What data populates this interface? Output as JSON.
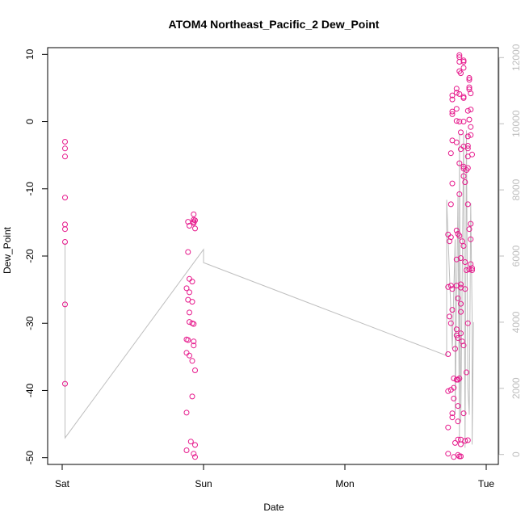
{
  "chart_data": {
    "type": "scatter",
    "title": "ATOM4 Northeast_Pacific_2 Dew_Point",
    "xlabel": "Date",
    "ylabel": "Dew_Point",
    "x_ticks": [
      "Sat",
      "Sun",
      "Mon",
      "Tue"
    ],
    "y_ticks": [
      "-50",
      "-40",
      "-30",
      "-20",
      "-10",
      "0",
      "10"
    ],
    "y_tick_values": [
      -50,
      -40,
      -30,
      -20,
      -10,
      0,
      10
    ],
    "ylim": [
      -51,
      11
    ],
    "y2_ticks": [
      "0",
      "2000",
      "4000",
      "6000",
      "8000",
      "10000",
      "12000"
    ],
    "y2_tick_values": [
      0,
      2000,
      4000,
      6000,
      8000,
      10000,
      12000
    ],
    "y2lim": [
      -300,
      12300
    ],
    "x_range_days": [
      0,
      3.05
    ],
    "colors": {
      "points": "#e6198c",
      "line": "#bebebe",
      "axis": "#000000",
      "right_axis": "#bdbdbd"
    },
    "series": [
      {
        "type": "scatter",
        "axis": "left",
        "points": [
          [
            0.02,
            -3
          ],
          [
            0.02,
            -4
          ],
          [
            0.02,
            -5.2
          ],
          [
            0.02,
            -11.3
          ],
          [
            0.02,
            -15.3
          ],
          [
            0.02,
            -16
          ],
          [
            0.02,
            -17.9
          ],
          [
            0.02,
            -27.2
          ],
          [
            0.02,
            -39
          ],
          [
            0.89,
            -14.9
          ],
          [
            0.9,
            -15.5
          ],
          [
            0.89,
            -19.4
          ],
          [
            0.9,
            -23.4
          ],
          [
            0.88,
            -24.8
          ],
          [
            0.9,
            -25.4
          ],
          [
            0.89,
            -26.5
          ],
          [
            0.9,
            -28.4
          ],
          [
            0.9,
            -29.8
          ],
          [
            0.88,
            -32.4
          ],
          [
            0.89,
            -32.5
          ],
          [
            0.88,
            -34.4
          ],
          [
            0.9,
            -34.8
          ],
          [
            0.88,
            -43.3
          ],
          [
            0.91,
            -47.6
          ],
          [
            0.88,
            -48.9
          ],
          [
            0.93,
            -13.8
          ],
          [
            0.93,
            -14.6
          ],
          [
            0.93,
            -14.9
          ],
          [
            0.93,
            -15.1
          ],
          [
            0.94,
            -14.7
          ],
          [
            0.94,
            -15.9
          ],
          [
            0.92,
            -23.8
          ],
          [
            0.92,
            -26.8
          ],
          [
            0.92,
            -30
          ],
          [
            0.93,
            -30.1
          ],
          [
            0.93,
            -32.7
          ],
          [
            0.93,
            -33.3
          ],
          [
            0.92,
            -35.6
          ],
          [
            0.94,
            -37
          ],
          [
            0.92,
            -40.9
          ],
          [
            0.94,
            -48.1
          ],
          [
            0.93,
            -49.4
          ],
          [
            0.94,
            -49.9
          ],
          [
            2.73,
            -16.8
          ],
          [
            2.74,
            -17.8
          ],
          [
            2.75,
            -17.2
          ],
          [
            2.73,
            -24.6
          ],
          [
            2.75,
            -24.4
          ],
          [
            2.74,
            -29
          ],
          [
            2.75,
            -30
          ],
          [
            2.73,
            -34.6
          ],
          [
            2.75,
            -39.9
          ],
          [
            2.73,
            -40.1
          ],
          [
            2.76,
            -44
          ],
          [
            2.73,
            -45.5
          ],
          [
            2.76,
            -43.4
          ],
          [
            2.73,
            -49.4
          ],
          [
            2.77,
            -49.9
          ],
          [
            2.76,
            3.3
          ],
          [
            2.76,
            3.9
          ],
          [
            2.76,
            1.1
          ],
          [
            2.76,
            1.5
          ],
          [
            2.76,
            -2.8
          ],
          [
            2.75,
            -4.7
          ],
          [
            2.76,
            -9.2
          ],
          [
            2.75,
            -12.3
          ],
          [
            2.76,
            -24.9
          ],
          [
            2.76,
            -28
          ],
          [
            2.77,
            -38.2
          ],
          [
            2.77,
            -39.6
          ],
          [
            2.77,
            -41.2
          ],
          [
            2.78,
            -47.8
          ],
          [
            2.78,
            -33.8
          ],
          [
            2.79,
            4.3
          ],
          [
            2.79,
            4.9
          ],
          [
            2.79,
            1.9
          ],
          [
            2.79,
            0.1
          ],
          [
            2.79,
            -3.1
          ],
          [
            2.79,
            -16.2
          ],
          [
            2.8,
            -16.7
          ],
          [
            2.79,
            -20.5
          ],
          [
            2.79,
            -24.4
          ],
          [
            2.8,
            -26.3
          ],
          [
            2.79,
            -30.9
          ],
          [
            2.79,
            -31.8
          ],
          [
            2.8,
            -32.2
          ],
          [
            2.79,
            -38.4
          ],
          [
            2.8,
            -38.4
          ],
          [
            2.8,
            -42.3
          ],
          [
            2.8,
            -44.6
          ],
          [
            2.8,
            -47.3
          ],
          [
            2.8,
            -49.6
          ],
          [
            2.81,
            -49.8
          ],
          [
            2.81,
            9.9
          ],
          [
            2.81,
            9.6
          ],
          [
            2.81,
            8.9
          ],
          [
            2.81,
            7.5
          ],
          [
            2.82,
            7.2
          ],
          [
            2.81,
            4.1
          ],
          [
            2.81,
            0
          ],
          [
            2.82,
            -1.6
          ],
          [
            2.82,
            -4.1
          ],
          [
            2.81,
            -6.2
          ],
          [
            2.81,
            -10.8
          ],
          [
            2.81,
            -17
          ],
          [
            2.82,
            -20.3
          ],
          [
            2.82,
            -24.2
          ],
          [
            2.82,
            -24.7
          ],
          [
            2.82,
            -27.1
          ],
          [
            2.82,
            -28.3
          ],
          [
            2.82,
            -31.5
          ],
          [
            2.83,
            -32.7
          ],
          [
            2.81,
            -38.2
          ],
          [
            2.82,
            -47.3
          ],
          [
            2.82,
            -48
          ],
          [
            2.82,
            -49.8
          ],
          [
            2.84,
            9.1
          ],
          [
            2.84,
            8.9
          ],
          [
            2.84,
            8
          ],
          [
            2.84,
            3.7
          ],
          [
            2.84,
            3.5
          ],
          [
            2.84,
            0
          ],
          [
            2.84,
            -3.7
          ],
          [
            2.84,
            -6.7
          ],
          [
            2.84,
            -7
          ],
          [
            2.84,
            -8.1
          ],
          [
            2.85,
            -9
          ],
          [
            2.83,
            -17.8
          ],
          [
            2.84,
            -18.5
          ],
          [
            2.85,
            -20.9
          ],
          [
            2.85,
            -24.9
          ],
          [
            2.84,
            -33.3
          ],
          [
            2.84,
            -43.4
          ],
          [
            2.85,
            -47.5
          ],
          [
            2.87,
            1.6
          ],
          [
            2.87,
            -2.2
          ],
          [
            2.87,
            -3.6
          ],
          [
            2.87,
            -4
          ],
          [
            2.87,
            -5.2
          ],
          [
            2.86,
            -7.2
          ],
          [
            2.87,
            -6.9
          ],
          [
            2.87,
            -12.3
          ],
          [
            2.86,
            -22.1
          ],
          [
            2.87,
            -30
          ],
          [
            2.86,
            -37.3
          ],
          [
            2.87,
            -47.4
          ],
          [
            2.88,
            6.5
          ],
          [
            2.88,
            6.2
          ],
          [
            2.88,
            5.1
          ],
          [
            2.88,
            4.8
          ],
          [
            2.89,
            4.2
          ],
          [
            2.88,
            0.3
          ],
          [
            2.89,
            1.8
          ],
          [
            2.89,
            -0.8
          ],
          [
            2.89,
            -2
          ],
          [
            2.9,
            -4.9
          ],
          [
            2.89,
            -15.2
          ],
          [
            2.88,
            -16
          ],
          [
            2.89,
            -17.5
          ],
          [
            2.89,
            -21.2
          ],
          [
            2.9,
            -21.8
          ],
          [
            2.9,
            -22.1
          ],
          [
            2.88,
            -22
          ]
        ]
      },
      {
        "type": "line",
        "axis": "right",
        "points": [
          [
            0.02,
            6400
          ],
          [
            0.02,
            500
          ],
          [
            1.0,
            6200
          ],
          [
            1.0,
            5800
          ],
          [
            2.72,
            2990
          ],
          [
            2.72,
            7700
          ],
          [
            2.76,
            3200
          ],
          [
            2.78,
            6500
          ],
          [
            2.78,
            1200
          ],
          [
            2.8,
            7800
          ],
          [
            2.81,
            500
          ],
          [
            2.81,
            9700
          ],
          [
            2.82,
            1000
          ],
          [
            2.84,
            9700
          ],
          [
            2.85,
            200
          ],
          [
            2.86,
            9800
          ],
          [
            2.87,
            2000
          ],
          [
            2.88,
            1200
          ],
          [
            2.89,
            7600
          ],
          [
            2.9,
            4200
          ],
          [
            2.9,
            300
          ],
          [
            2.91,
            4000
          ]
        ]
      }
    ]
  }
}
